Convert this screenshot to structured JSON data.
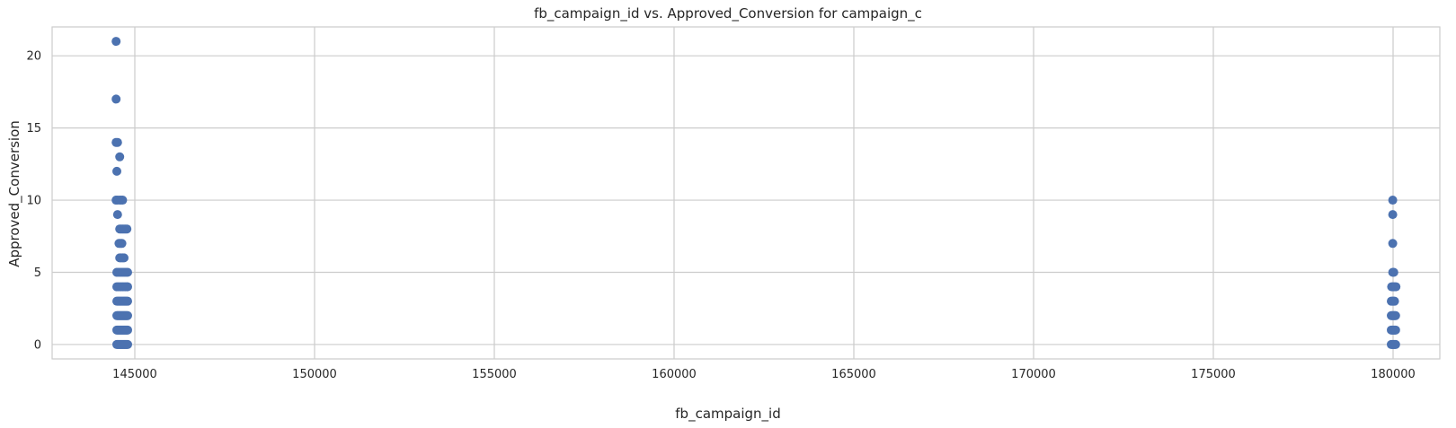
{
  "chart_data": {
    "type": "scatter",
    "title": "fb_campaign_id vs. Approved_Conversion for campaign_c",
    "xlabel": "fb_campaign_id",
    "ylabel": "Approved_Conversion",
    "xlim": [
      142700,
      181300
    ],
    "ylim": [
      -1,
      22
    ],
    "xticks": [
      145000,
      150000,
      155000,
      160000,
      165000,
      170000,
      175000,
      180000
    ],
    "xtick_labels": [
      "145000",
      "150000",
      "155000",
      "160000",
      "165000",
      "170000",
      "175000",
      "180000"
    ],
    "yticks": [
      0,
      5,
      10,
      15,
      20
    ],
    "ytick_labels": [
      "0",
      "5",
      "10",
      "15",
      "20"
    ],
    "grid": true,
    "marker_color": "#4c72b0",
    "series": [
      {
        "x": [
          144500,
          144520,
          144540,
          144560,
          144580,
          144600,
          144620,
          144640,
          144660,
          144680,
          144700,
          144720,
          144740,
          144760,
          144780,
          144800,
          144500,
          144520,
          144540,
          144560,
          144580,
          144600,
          144620,
          144640,
          144660,
          144680,
          144700,
          144720,
          144740,
          144760,
          144780,
          144800,
          144500,
          144520,
          144540,
          144560,
          144580,
          144600,
          144620,
          144640,
          144660,
          144680,
          144700,
          144720,
          144740,
          144760,
          144780,
          144800,
          144500,
          144530,
          144560,
          144590,
          144620,
          144650,
          144680,
          144710,
          144740,
          144770,
          144800,
          144500,
          144540,
          144580,
          144620,
          144660,
          144700,
          144740,
          144780,
          144800,
          144500,
          144550,
          144600,
          144650,
          144700,
          144750,
          144800,
          144580,
          144620,
          144660,
          144700,
          144560,
          144600,
          144640,
          144580,
          144620,
          144660,
          144700,
          144740,
          144780,
          144520,
          144480,
          144520,
          144580,
          144620,
          144660,
          144500,
          144580,
          144480,
          144520,
          144480,
          144480,
          179950,
          179970,
          179990,
          180010,
          180030,
          180050,
          180070,
          179950,
          179970,
          179990,
          180010,
          180030,
          180050,
          180070,
          179950,
          179970,
          179990,
          180010,
          180030,
          180050,
          180070,
          179950,
          179980,
          180010,
          180040,
          179960,
          179990,
          180020,
          180050,
          180080,
          179990,
          180020,
          179990,
          179990,
          179990
        ],
        "y": [
          0,
          0,
          0,
          0,
          0,
          0,
          0,
          0,
          0,
          0,
          0,
          0,
          0,
          0,
          0,
          0,
          1,
          1,
          1,
          1,
          1,
          1,
          1,
          1,
          1,
          1,
          1,
          1,
          1,
          1,
          1,
          1,
          2,
          2,
          2,
          2,
          2,
          2,
          2,
          2,
          2,
          2,
          2,
          2,
          2,
          2,
          2,
          2,
          3,
          3,
          3,
          3,
          3,
          3,
          3,
          3,
          3,
          3,
          3,
          4,
          4,
          4,
          4,
          4,
          4,
          4,
          4,
          4,
          5,
          5,
          5,
          5,
          5,
          5,
          5,
          6,
          6,
          6,
          6,
          7,
          7,
          7,
          8,
          8,
          8,
          8,
          8,
          8,
          9,
          10,
          10,
          10,
          10,
          10,
          12,
          13,
          14,
          14,
          17,
          21,
          0,
          0,
          0,
          0,
          0,
          0,
          0,
          1,
          1,
          1,
          1,
          1,
          1,
          1,
          2,
          2,
          2,
          2,
          2,
          2,
          2,
          3,
          3,
          3,
          3,
          4,
          4,
          4,
          4,
          4,
          5,
          5,
          7,
          9,
          10
        ]
      }
    ]
  }
}
